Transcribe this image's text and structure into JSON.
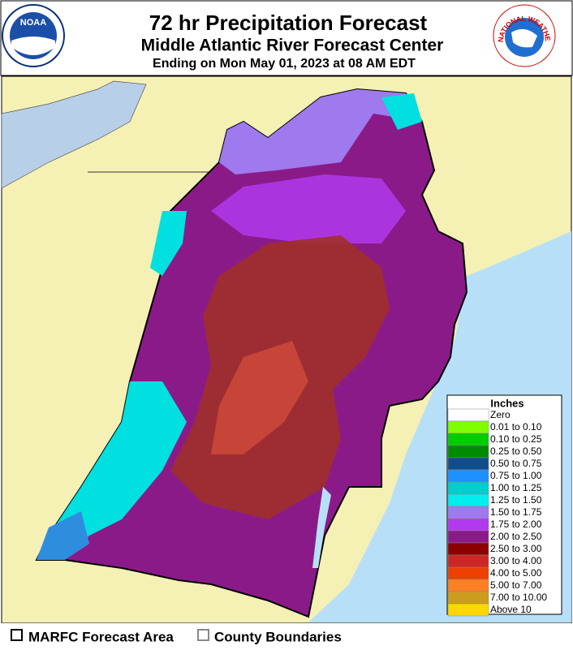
{
  "header": {
    "title": "72 hr Precipitation Forecast",
    "subtitle": "Middle Atlantic River Forecast Center",
    "valid": "Ending on Mon May 01, 2023 at 08 AM EDT",
    "noaa_logo": "NOAA",
    "nws_logo": "NATIONAL WEATHER SERVICE"
  },
  "legend": {
    "title": "Inches",
    "items": [
      {
        "label": "Zero",
        "color": "#ffffff"
      },
      {
        "label": "0.01 to 0.10",
        "color": "#7fff00"
      },
      {
        "label": "0.10 to 0.25",
        "color": "#00cd00"
      },
      {
        "label": "0.25 to 0.50",
        "color": "#008b00"
      },
      {
        "label": "0.50 to 0.75",
        "color": "#104e8b"
      },
      {
        "label": "0.75 to 1.00",
        "color": "#1e90ff"
      },
      {
        "label": "1.00 to 1.25",
        "color": "#00cdcd"
      },
      {
        "label": "1.25 to 1.50",
        "color": "#00eeee"
      },
      {
        "label": "1.50 to 1.75",
        "color": "#9f79ee"
      },
      {
        "label": "1.75 to 2.00",
        "color": "#b23aee"
      },
      {
        "label": "2.00 to 2.50",
        "color": "#8b1a89"
      },
      {
        "label": "2.50 to 3.00",
        "color": "#8b0000"
      },
      {
        "label": "3.00 to 4.00",
        "color": "#cd2626"
      },
      {
        "label": "4.00 to 5.00",
        "color": "#ee4000"
      },
      {
        "label": "5.00 to 7.00",
        "color": "#ff7f24"
      },
      {
        "label": "7.00 to 10.00",
        "color": "#cd9b1d"
      },
      {
        "label": "Above 10",
        "color": "#ffd700"
      }
    ]
  },
  "footer": {
    "items": [
      "MARFC Forecast Area",
      "County Boundaries"
    ]
  }
}
